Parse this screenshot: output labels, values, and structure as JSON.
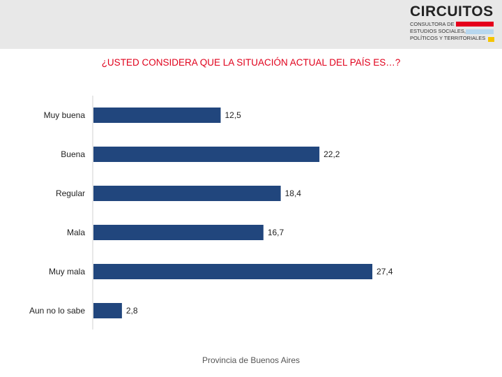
{
  "logo": {
    "name": "CIRCUITOS",
    "lines": [
      "CONSULTORA DE",
      "ESTUDIOS SOCIALES,",
      "POLÍTICOS Y TERRITORIALES"
    ],
    "stripe_colors": [
      "#e5001c",
      "#b7d7ef",
      "#f5c400"
    ]
  },
  "colors": {
    "bar": "#21467d",
    "title": "#e0001b"
  },
  "chart_data": {
    "type": "bar",
    "orientation": "horizontal",
    "title": "¿USTED CONSIDERA QUE LA SITUACIÓN ACTUAL DEL PAÍS ES…?",
    "categories": [
      "Muy buena",
      "Buena",
      "Regular",
      "Mala",
      "Muy mala",
      "Aun no lo sabe"
    ],
    "values": [
      12.5,
      22.2,
      18.4,
      16.7,
      27.4,
      2.8
    ],
    "value_labels": [
      "12,5",
      "22,2",
      "18,4",
      "16,7",
      "27,4",
      "2,8"
    ],
    "xlim": [
      0,
      30
    ],
    "grid": false,
    "footer": "Provincia de Buenos Aires"
  }
}
